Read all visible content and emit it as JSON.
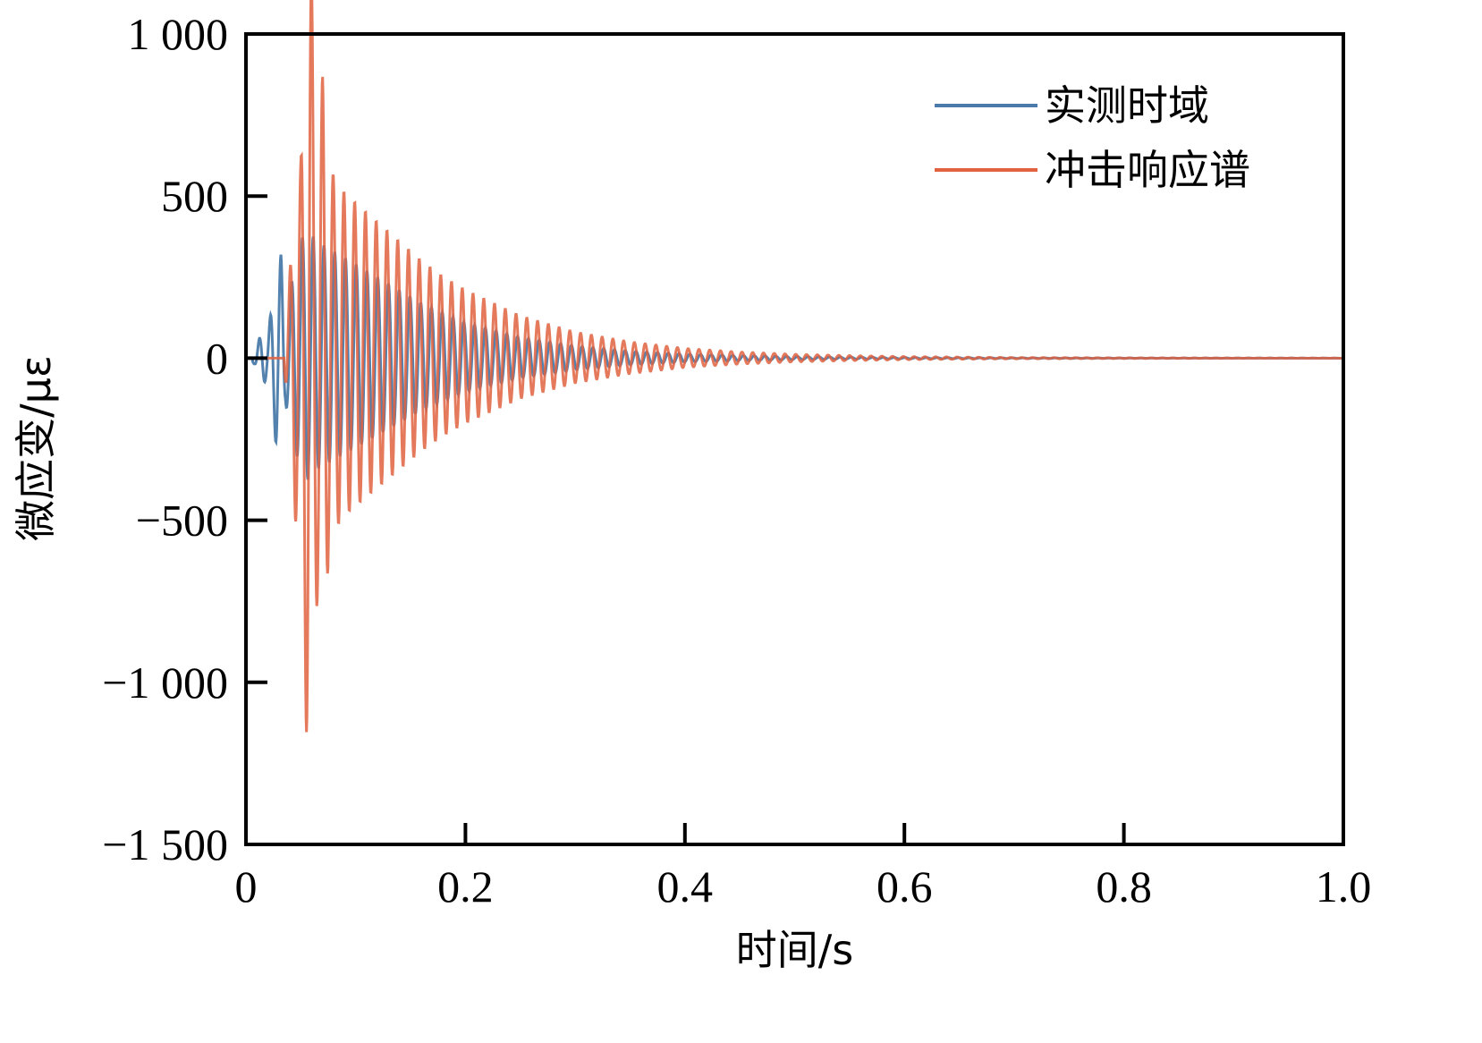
{
  "chart_data": {
    "type": "line",
    "title": "",
    "xlabel": "时间/s",
    "ylabel": "微应变/με",
    "xlim": [
      0,
      1.0
    ],
    "ylim": [
      -1500,
      1000
    ],
    "x_ticks": [
      0,
      0.2,
      0.4,
      0.6,
      0.8,
      1.0
    ],
    "x_tick_labels": [
      "0",
      "0.2",
      "0.4",
      "0.6",
      "0.8",
      "1.0"
    ],
    "y_ticks": [
      -1500,
      -1000,
      -500,
      0,
      500,
      1000
    ],
    "y_tick_labels": [
      "−1 500",
      "−1 000",
      "−500",
      "0",
      "500",
      "1 000"
    ],
    "grid": false,
    "legend_position": "top-right",
    "series": [
      {
        "name": "实测时域",
        "color": "#4a7bab",
        "description_points": {
          "t": [
            0.0,
            0.008,
            0.012,
            0.016,
            0.02,
            0.024,
            0.028,
            0.032,
            0.036,
            0.04,
            0.045,
            0.05,
            0.055,
            0.06,
            0.065,
            0.07,
            0.075,
            0.08,
            0.09,
            0.1,
            0.12,
            0.14,
            0.16,
            0.18,
            0.2,
            0.25,
            0.3,
            0.35,
            0.4,
            0.45,
            0.5,
            0.55,
            0.6,
            0.7,
            0.8,
            0.9,
            1.0
          ],
          "envelope": [
            0,
            20,
            60,
            80,
            70,
            180,
            300,
            320,
            150,
            200,
            300,
            360,
            400,
            380,
            360,
            350,
            340,
            330,
            310,
            290,
            250,
            210,
            170,
            140,
            110,
            65,
            38,
            22,
            13,
            8,
            5,
            3,
            2,
            1,
            0.5,
            0.3,
            0.2
          ]
        }
      },
      {
        "name": "冲击响应谱",
        "color": "#e0623f",
        "description_points": {
          "t": [
            0.0,
            0.02,
            0.035,
            0.045,
            0.05,
            0.055,
            0.058,
            0.062,
            0.066,
            0.07,
            0.075,
            0.08,
            0.09,
            0.1,
            0.12,
            0.14,
            0.16,
            0.18,
            0.2,
            0.25,
            0.3,
            0.35,
            0.4,
            0.45,
            0.5,
            0.55,
            0.6,
            0.7,
            0.8,
            0.9,
            1.0
          ],
          "envelope": [
            0,
            5,
            30,
            500,
            600,
            1150,
            1380,
            900,
            700,
            880,
            640,
            560,
            510,
            480,
            420,
            360,
            300,
            250,
            210,
            130,
            80,
            50,
            30,
            19,
            12,
            8,
            5,
            2,
            1,
            0.5,
            0.3
          ]
        }
      }
    ]
  }
}
